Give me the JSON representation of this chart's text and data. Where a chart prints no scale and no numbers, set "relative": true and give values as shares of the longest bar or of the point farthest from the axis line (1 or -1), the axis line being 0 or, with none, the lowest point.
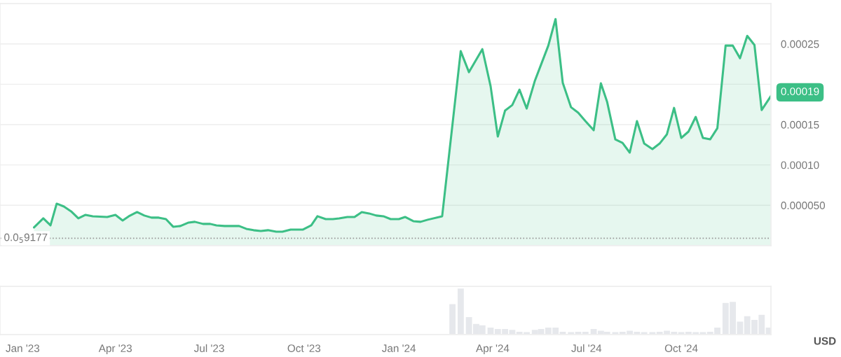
{
  "chart_data": [
    {
      "type": "area",
      "tick_labels": "y",
      "grid": "y",
      "legend": false,
      "marker": "none",
      "line_style": "solid",
      "xlim": [
        "2022-12-10",
        "2024-12-27"
      ],
      "ylim": [
        0,
        0.0003
      ],
      "yticks": [
        {
          "value": 5e-05,
          "label": "0.000050"
        },
        {
          "value": 0.0001,
          "label": "0.00010"
        },
        {
          "value": 0.00015,
          "label": "0.00015"
        },
        {
          "value": 0.0002,
          "label": null
        },
        {
          "value": 0.00025,
          "label": "0.00025"
        }
      ],
      "ref_lines": [
        {
          "axis": "y",
          "value": 9.177e-06,
          "label": "0.0$_{5}$9177",
          "color": "#999999",
          "line_style": "dotted"
        }
      ],
      "annotations": [
        {
          "text": "0.00019",
          "x": "2024-12-27",
          "y": 0.00019
        }
      ],
      "series": [
        {
          "color": "#3cbf86",
          "x": [
            "2023-01-12",
            "2023-01-21",
            "2023-01-28",
            "2023-02-03",
            "2023-02-10",
            "2023-02-17",
            "2023-02-24",
            "2023-03-03",
            "2023-03-10",
            "2023-03-24",
            "2023-04-01",
            "2023-04-08",
            "2023-04-14",
            "2023-04-22",
            "2023-04-29",
            "2023-05-06",
            "2023-05-13",
            "2023-05-20",
            "2023-05-27",
            "2023-06-03",
            "2023-06-11",
            "2023-06-17",
            "2023-06-25",
            "2023-07-02",
            "2023-07-08",
            "2023-07-16",
            "2023-07-30",
            "2023-08-06",
            "2023-08-13",
            "2023-08-20",
            "2023-08-27",
            "2023-09-04",
            "2023-09-10",
            "2023-09-18",
            "2023-09-30",
            "2023-10-08",
            "2023-10-14",
            "2023-10-22",
            "2023-10-29",
            "2023-11-04",
            "2023-11-12",
            "2023-11-19",
            "2023-11-26",
            "2023-12-03",
            "2023-12-10",
            "2023-12-17",
            "2023-12-24",
            "2024-01-01",
            "2024-01-07",
            "2024-01-15",
            "2024-01-22",
            "2024-01-29",
            "2024-02-12",
            "2024-03-01",
            "2024-03-09",
            "2024-03-22",
            "2024-03-30",
            "2024-04-06",
            "2024-04-13",
            "2024-04-20",
            "2024-04-27",
            "2024-05-04",
            "2024-05-12",
            "2024-05-18",
            "2024-05-25",
            "2024-06-01",
            "2024-06-08",
            "2024-06-16",
            "2024-06-23",
            "2024-06-30",
            "2024-07-08",
            "2024-07-15",
            "2024-07-21",
            "2024-07-29",
            "2024-08-05",
            "2024-08-12",
            "2024-08-19",
            "2024-08-26",
            "2024-09-03",
            "2024-09-10",
            "2024-09-17",
            "2024-09-24",
            "2024-10-01",
            "2024-10-08",
            "2024-10-15",
            "2024-10-22",
            "2024-10-29",
            "2024-11-05",
            "2024-11-13",
            "2024-11-20",
            "2024-11-27",
            "2024-12-04",
            "2024-12-11",
            "2024-12-18",
            "2024-12-27"
          ],
          "values": [
            2.25e-05,
            3.38e-05,
            2.51e-05,
            5.2e-05,
            4.85e-05,
            4.25e-05,
            3.38e-05,
            3.81e-05,
            3.64e-05,
            3.55e-05,
            3.81e-05,
            3.12e-05,
            3.64e-05,
            4.16e-05,
            3.73e-05,
            3.47e-05,
            3.47e-05,
            3.29e-05,
            2.34e-05,
            2.43e-05,
            2.86e-05,
            2.95e-05,
            2.69e-05,
            2.69e-05,
            2.51e-05,
            2.43e-05,
            2.43e-05,
            2.08e-05,
            1.91e-05,
            1.82e-05,
            1.91e-05,
            1.73e-05,
            1.73e-05,
            1.99e-05,
            1.99e-05,
            2.51e-05,
            3.64e-05,
            3.29e-05,
            3.29e-05,
            3.38e-05,
            3.55e-05,
            3.55e-05,
            4.16e-05,
            3.99e-05,
            3.73e-05,
            3.64e-05,
            3.29e-05,
            3.29e-05,
            3.55e-05,
            3.03e-05,
            2.95e-05,
            3.21e-05,
            3.64e-05,
            0.000241,
            0.000215,
            0.0002435,
            0.0001976,
            0.0001352,
            0.0001673,
            0.0001742,
            0.0001933,
            0.0001699,
            0.0002045,
            0.0002245,
            0.0002479,
            0.0002808,
            0.0002019,
            0.0001716,
            0.0001647,
            0.0001543,
            0.000143,
            0.0002011,
            0.0001785,
            0.0001317,
            0.0001274,
            0.0001153,
            0.0001543,
            0.0001265,
            0.0001196,
            0.0001265,
            0.0001378,
            0.0001707,
            0.0001335,
            0.0001413,
            0.0001595,
            0.0001335,
            0.0001317,
            0.0001456,
            0.0002479,
            0.0002479,
            0.0002323,
            0.00026,
            0.0002487,
            0.0001681,
            0.0001855
          ]
        }
      ]
    },
    {
      "type": "bar",
      "relative": true,
      "tick_labels": "x",
      "xlim": [
        "2022-12-10",
        "2024-12-27"
      ],
      "xticks": [
        {
          "value": "2023-01-01",
          "label": "Jan '23"
        },
        {
          "value": "2023-04-01",
          "label": "Apr '23"
        },
        {
          "value": "2023-07-01",
          "label": "Jul '23"
        },
        {
          "value": "2023-10-01",
          "label": "Oct '23"
        },
        {
          "value": "2024-01-01",
          "label": "Jan '24"
        },
        {
          "value": "2024-04-01",
          "label": "Apr '24"
        },
        {
          "value": "2024-07-01",
          "label": "Jul '24"
        },
        {
          "value": "2024-10-01",
          "label": "Oct '24"
        }
      ],
      "annotations": [
        "USD"
      ],
      "series": [
        {
          "color": "#e6e8ec",
          "x": [
            "2024-02-22",
            "2024-03-01",
            "2024-03-09",
            "2024-03-16",
            "2024-03-22",
            "2024-03-30",
            "2024-04-06",
            "2024-04-13",
            "2024-04-20",
            "2024-04-27",
            "2024-05-04",
            "2024-05-12",
            "2024-05-18",
            "2024-05-25",
            "2024-06-01",
            "2024-06-08",
            "2024-06-16",
            "2024-06-23",
            "2024-06-30",
            "2024-07-08",
            "2024-07-15",
            "2024-07-21",
            "2024-07-29",
            "2024-08-05",
            "2024-08-12",
            "2024-08-19",
            "2024-08-26",
            "2024-09-03",
            "2024-09-10",
            "2024-09-17",
            "2024-09-24",
            "2024-10-01",
            "2024-10-08",
            "2024-10-15",
            "2024-10-22",
            "2024-10-29",
            "2024-11-05",
            "2024-11-13",
            "2024-11-20",
            "2024-11-27",
            "2024-12-04",
            "2024-12-11",
            "2024-12-18",
            "2024-12-25"
          ],
          "values": [
            0.66,
            1.0,
            0.38,
            0.23,
            0.2,
            0.15,
            0.12,
            0.12,
            0.1,
            0.06,
            0.05,
            0.1,
            0.12,
            0.15,
            0.15,
            0.06,
            0.05,
            0.06,
            0.06,
            0.12,
            0.08,
            0.06,
            0.05,
            0.06,
            0.08,
            0.06,
            0.05,
            0.05,
            0.06,
            0.08,
            0.06,
            0.05,
            0.06,
            0.05,
            0.05,
            0.06,
            0.15,
            0.69,
            0.71,
            0.28,
            0.4,
            0.32,
            0.43,
            0.15
          ]
        }
      ]
    }
  ]
}
